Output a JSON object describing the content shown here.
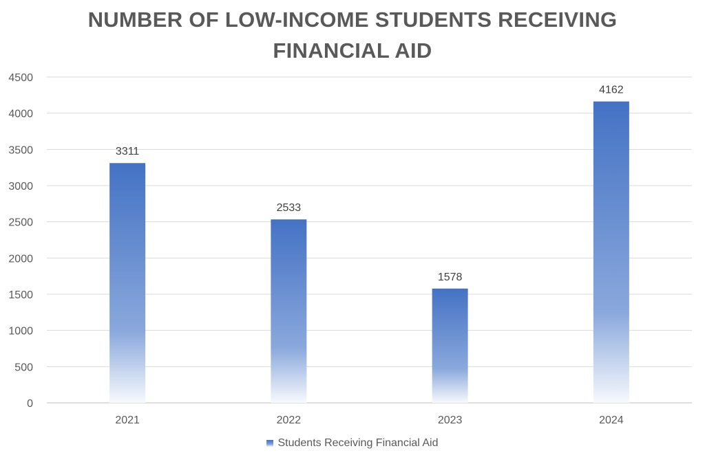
{
  "chart_data": {
    "type": "bar",
    "title_lines": [
      "NUMBER OF LOW-INCOME STUDENTS RECEIVING",
      "FINANCIAL AID"
    ],
    "categories": [
      "2021",
      "2022",
      "2023",
      "2024"
    ],
    "series": [
      {
        "name": "Students Receiving Financial Aid",
        "values": [
          3311,
          2533,
          1578,
          4162
        ]
      }
    ],
    "ylim": [
      0,
      4500
    ],
    "yticks": [
      0,
      500,
      1000,
      1500,
      2000,
      2500,
      3000,
      3500,
      4000,
      4500
    ],
    "grid": true,
    "legend_position": "bottom",
    "colors": {
      "bar": "#4472C4",
      "grid": "#D9D9D9",
      "text": "#595959"
    }
  }
}
